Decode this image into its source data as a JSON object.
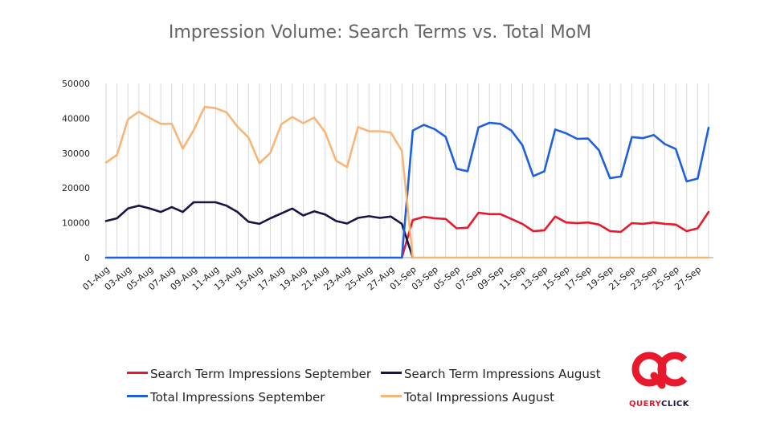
{
  "chart_data": {
    "type": "line",
    "title": "Impression Volume: Search Terms vs. Total MoM",
    "xlabel": "",
    "ylabel": "",
    "ylim": [
      0,
      50000
    ],
    "yticks": [
      0,
      10000,
      20000,
      30000,
      40000,
      50000
    ],
    "grid": "vertical",
    "legend_position": "bottom",
    "x": [
      "01-Aug",
      "02-Aug",
      "03-Aug",
      "04-Aug",
      "05-Aug",
      "06-Aug",
      "07-Aug",
      "08-Aug",
      "09-Aug",
      "10-Aug",
      "11-Aug",
      "12-Aug",
      "13-Aug",
      "14-Aug",
      "15-Aug",
      "16-Aug",
      "17-Aug",
      "18-Aug",
      "19-Aug",
      "20-Aug",
      "21-Aug",
      "22-Aug",
      "23-Aug",
      "24-Aug",
      "25-Aug",
      "26-Aug",
      "27-Aug",
      "28-Aug",
      "01-Sep",
      "02-Sep",
      "03-Sep",
      "04-Sep",
      "05-Sep",
      "06-Sep",
      "07-Sep",
      "08-Sep",
      "09-Sep",
      "10-Sep",
      "11-Sep",
      "12-Sep",
      "13-Sep",
      "14-Sep",
      "15-Sep",
      "16-Sep",
      "17-Sep",
      "18-Sep",
      "19-Sep",
      "20-Sep",
      "21-Sep",
      "22-Sep",
      "23-Sep",
      "24-Sep",
      "25-Sep",
      "26-Sep",
      "27-Sep",
      "28-Sep"
    ],
    "xtick_labels": [
      "01-Aug",
      "03-Aug",
      "05-Aug",
      "07-Aug",
      "09-Aug",
      "11-Aug",
      "13-Aug",
      "15-Aug",
      "17-Aug",
      "19-Aug",
      "21-Aug",
      "23-Aug",
      "25-Aug",
      "27-Aug",
      "01-Sep",
      "03-Sep",
      "05-Sep",
      "07-Sep",
      "09-Sep",
      "11-Sep",
      "13-Sep",
      "15-Sep",
      "17-Sep",
      "19-Sep",
      "21-Sep",
      "23-Sep",
      "25-Sep",
      "27-Sep"
    ],
    "series": [
      {
        "name": "Search Term Impressions September",
        "color": "#e8192c",
        "values": [
          null,
          null,
          null,
          null,
          null,
          null,
          null,
          null,
          null,
          null,
          null,
          null,
          null,
          null,
          null,
          null,
          null,
          null,
          null,
          null,
          null,
          null,
          null,
          null,
          null,
          null,
          null,
          0,
          10800,
          11700,
          11300,
          11100,
          8400,
          8600,
          12900,
          12500,
          12500,
          11100,
          9700,
          7600,
          7800,
          11800,
          10100,
          9900,
          10100,
          9500,
          7600,
          7400,
          9900,
          9700,
          10100,
          9700,
          9500,
          7600,
          8400,
          13100
        ]
      },
      {
        "name": "Search Term Impressions August",
        "color": "#1b1444",
        "values": [
          10500,
          11300,
          14100,
          14900,
          14100,
          13100,
          14500,
          13100,
          15900,
          15900,
          15900,
          14900,
          13100,
          10300,
          9700,
          11300,
          12700,
          14100,
          12100,
          13300,
          12400,
          10500,
          9800,
          11400,
          11900,
          11400,
          11800,
          9700,
          0,
          null,
          null,
          null,
          null,
          null,
          null,
          null,
          null,
          null,
          null,
          null,
          null,
          null,
          null,
          null,
          null,
          null,
          null,
          null,
          null,
          null,
          null,
          null,
          null,
          null,
          null,
          null
        ]
      },
      {
        "name": "Total Impressions September",
        "color": "#1d5fe0",
        "values": [
          0,
          0,
          0,
          0,
          0,
          0,
          0,
          0,
          0,
          0,
          0,
          0,
          0,
          0,
          0,
          0,
          0,
          0,
          0,
          0,
          0,
          0,
          0,
          0,
          0,
          0,
          0,
          0,
          36500,
          38100,
          36900,
          34700,
          25500,
          24800,
          37400,
          38700,
          38400,
          36500,
          32300,
          23400,
          24800,
          36800,
          35700,
          34100,
          34200,
          30800,
          22800,
          23300,
          34600,
          34300,
          35200,
          32600,
          31200,
          21900,
          22700,
          37300
        ]
      },
      {
        "name": "Total Impressions August",
        "color": "#f8b578",
        "values": [
          27300,
          29500,
          39700,
          41900,
          40100,
          38400,
          38400,
          31300,
          36600,
          43300,
          42900,
          41700,
          37600,
          34500,
          27100,
          30100,
          38300,
          40400,
          38600,
          40200,
          36000,
          27800,
          26000,
          37500,
          36300,
          36300,
          35900,
          30700,
          0,
          0,
          0,
          0,
          0,
          0,
          0,
          0,
          0,
          0,
          0,
          0,
          0,
          0,
          0,
          0,
          0,
          0,
          0,
          0,
          0,
          0,
          0,
          0,
          0,
          0,
          0,
          0
        ]
      }
    ]
  },
  "logo": {
    "letters": "QC",
    "text_query": "QUERY",
    "text_click": "CLICK",
    "color_red": "#e8192c",
    "color_dark": "#1b1444"
  }
}
